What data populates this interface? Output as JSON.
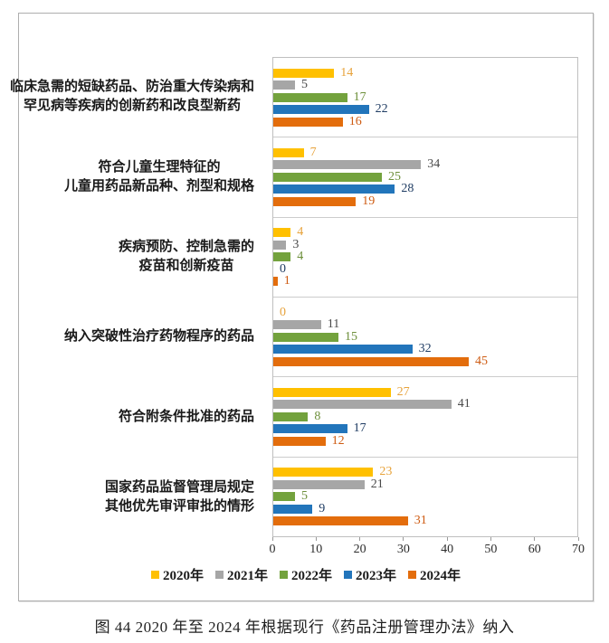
{
  "chart_data": {
    "type": "bar",
    "orientation": "horizontal",
    "title": "",
    "categories": [
      {
        "lines": [
          "临床急需的短缺药品、防治重大传染病和",
          "罕见病等疾病的创新药和改良型新药"
        ]
      },
      {
        "lines": [
          "符合儿童生理特征的",
          "儿童用药品新品种、剂型和规格"
        ]
      },
      {
        "lines": [
          "疾病预防、控制急需的",
          "疫苗和创新疫苗"
        ]
      },
      {
        "lines": [
          "纳入突破性治疗药物程序的药品"
        ]
      },
      {
        "lines": [
          "符合附条件批准的药品"
        ]
      },
      {
        "lines": [
          "国家药品监督管理局规定",
          "其他优先审评审批的情形"
        ]
      }
    ],
    "series": [
      {
        "name": "2020年",
        "color": "#FFC000",
        "label_color": "#E7A33C",
        "values": [
          14,
          7,
          4,
          0,
          27,
          23
        ]
      },
      {
        "name": "2021年",
        "color": "#A6A6A6",
        "label_color": "#4A4A4A",
        "values": [
          5,
          34,
          3,
          11,
          41,
          21
        ]
      },
      {
        "name": "2022年",
        "color": "#73A23D",
        "label_color": "#6D8F3A",
        "values": [
          17,
          25,
          4,
          15,
          8,
          5
        ]
      },
      {
        "name": "2023年",
        "color": "#2275BB",
        "label_color": "#1F3C63",
        "values": [
          22,
          28,
          0,
          32,
          17,
          9
        ]
      },
      {
        "name": "2024年",
        "color": "#E36D0C",
        "label_color": "#CE5B12",
        "values": [
          16,
          19,
          1,
          45,
          12,
          31
        ]
      }
    ],
    "x_axis": {
      "ticks": [
        0,
        10,
        20,
        30,
        40,
        50,
        60,
        70
      ],
      "min": 0,
      "max": 70
    },
    "legend_position": "bottom",
    "grid": "category-separator-lines"
  },
  "caption": "图 44 2020 年至 2024 年根据现行《药品注册管理办法》纳入"
}
